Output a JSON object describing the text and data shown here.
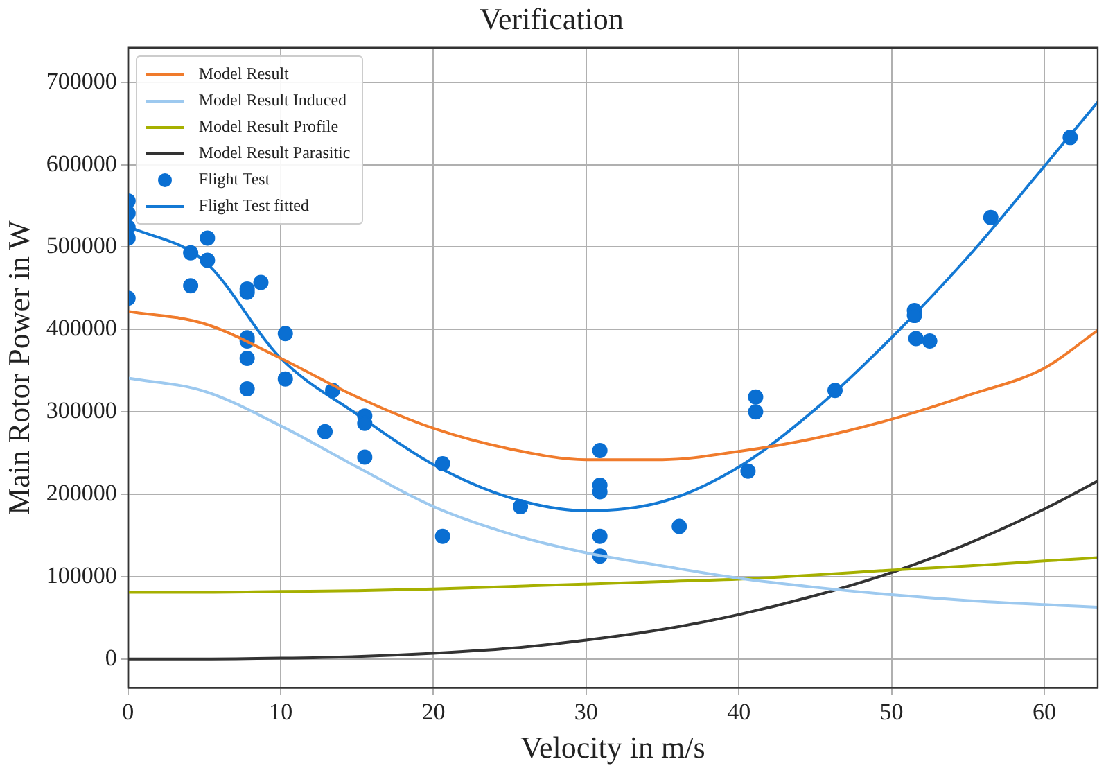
{
  "chart_data": {
    "type": "line",
    "title": "Verification",
    "xlabel": "Velocity in m/s",
    "ylabel": "Main Rotor Power in W",
    "xlim": [
      0,
      63.5
    ],
    "ylim": [
      -35000,
      742000
    ],
    "xticks": [
      0,
      10,
      20,
      30,
      40,
      50,
      60
    ],
    "yticks": [
      0,
      100000,
      200000,
      300000,
      400000,
      500000,
      600000,
      700000
    ],
    "grid": true,
    "legend": "top left",
    "line_style": "solid",
    "series": [
      {
        "name": "Model Result",
        "color": "#f07b2c",
        "x": [
          0,
          5,
          10,
          15,
          20,
          25,
          30,
          35,
          40,
          45,
          50,
          55,
          60,
          63.5
        ],
        "values": [
          422000,
          407000,
          365000,
          318000,
          280000,
          255000,
          242000,
          242000,
          252000,
          268000,
          291000,
          320000,
          353000,
          399000
        ]
      },
      {
        "name": "Model Result Induced",
        "color": "#9dc9ef",
        "x": [
          0,
          5,
          10,
          15,
          20,
          25,
          30,
          35,
          40,
          45,
          50,
          55,
          60,
          63.5
        ],
        "values": [
          341000,
          325000,
          283000,
          233000,
          185000,
          152000,
          129000,
          113000,
          98000,
          87000,
          78000,
          71000,
          66000,
          63000
        ]
      },
      {
        "name": "Model Result Profile",
        "color": "#a6b000",
        "x": [
          0,
          5,
          10,
          15,
          20,
          25,
          30,
          35,
          40,
          45,
          50,
          55,
          60,
          63.5
        ],
        "values": [
          81000,
          81000,
          82000,
          83000,
          85000,
          88000,
          91000,
          94000,
          97000,
          102000,
          108000,
          113000,
          119000,
          123000
        ]
      },
      {
        "name": "Model Result Parasitic",
        "color": "#333333",
        "x": [
          0,
          5,
          10,
          15,
          20,
          25,
          30,
          35,
          40,
          45,
          50,
          55,
          60,
          63.5
        ],
        "values": [
          0,
          0,
          1000,
          3000,
          7000,
          13000,
          23000,
          36000,
          54000,
          77000,
          105000,
          140000,
          182000,
          216000
        ]
      },
      {
        "name": "Flight Test",
        "type": "scatter",
        "marker": "circle",
        "color": "#0a6fd2",
        "x": [
          0,
          0,
          0,
          0,
          0,
          4.1,
          4.1,
          5.2,
          5.2,
          7.8,
          7.8,
          8.7,
          7.8,
          7.8,
          7.8,
          7.8,
          10.3,
          10.3,
          13.4,
          12.9,
          15.5,
          15.5,
          15.5,
          20.6,
          20.6,
          25.7,
          30.9,
          30.9,
          30.9,
          30.9,
          30.9,
          36.1,
          40.6,
          41.1,
          41.1,
          46.3,
          51.5,
          51.5,
          51.6,
          52.5,
          56.5,
          61.7
        ],
        "values": [
          556000,
          541000,
          524000,
          511000,
          438000,
          493000,
          453000,
          511000,
          484000,
          449000,
          445000,
          457000,
          390000,
          386000,
          365000,
          328000,
          395000,
          340000,
          326000,
          276000,
          295000,
          286000,
          245000,
          237000,
          149000,
          185000,
          253000,
          211000,
          203000,
          149000,
          125000,
          161000,
          228000,
          318000,
          300000,
          326000,
          423000,
          417000,
          389000,
          386000,
          536000,
          633000
        ]
      },
      {
        "name": "Flight Test fitted",
        "color": "#1479d4",
        "x": [
          0,
          5,
          10,
          15,
          20,
          25,
          30,
          35,
          40,
          45,
          50,
          55,
          60,
          63.5
        ],
        "values": [
          525000,
          483000,
          365000,
          297000,
          236000,
          196000,
          180000,
          191000,
          233000,
          303000,
          390000,
          488000,
          598000,
          676000
        ]
      }
    ]
  }
}
